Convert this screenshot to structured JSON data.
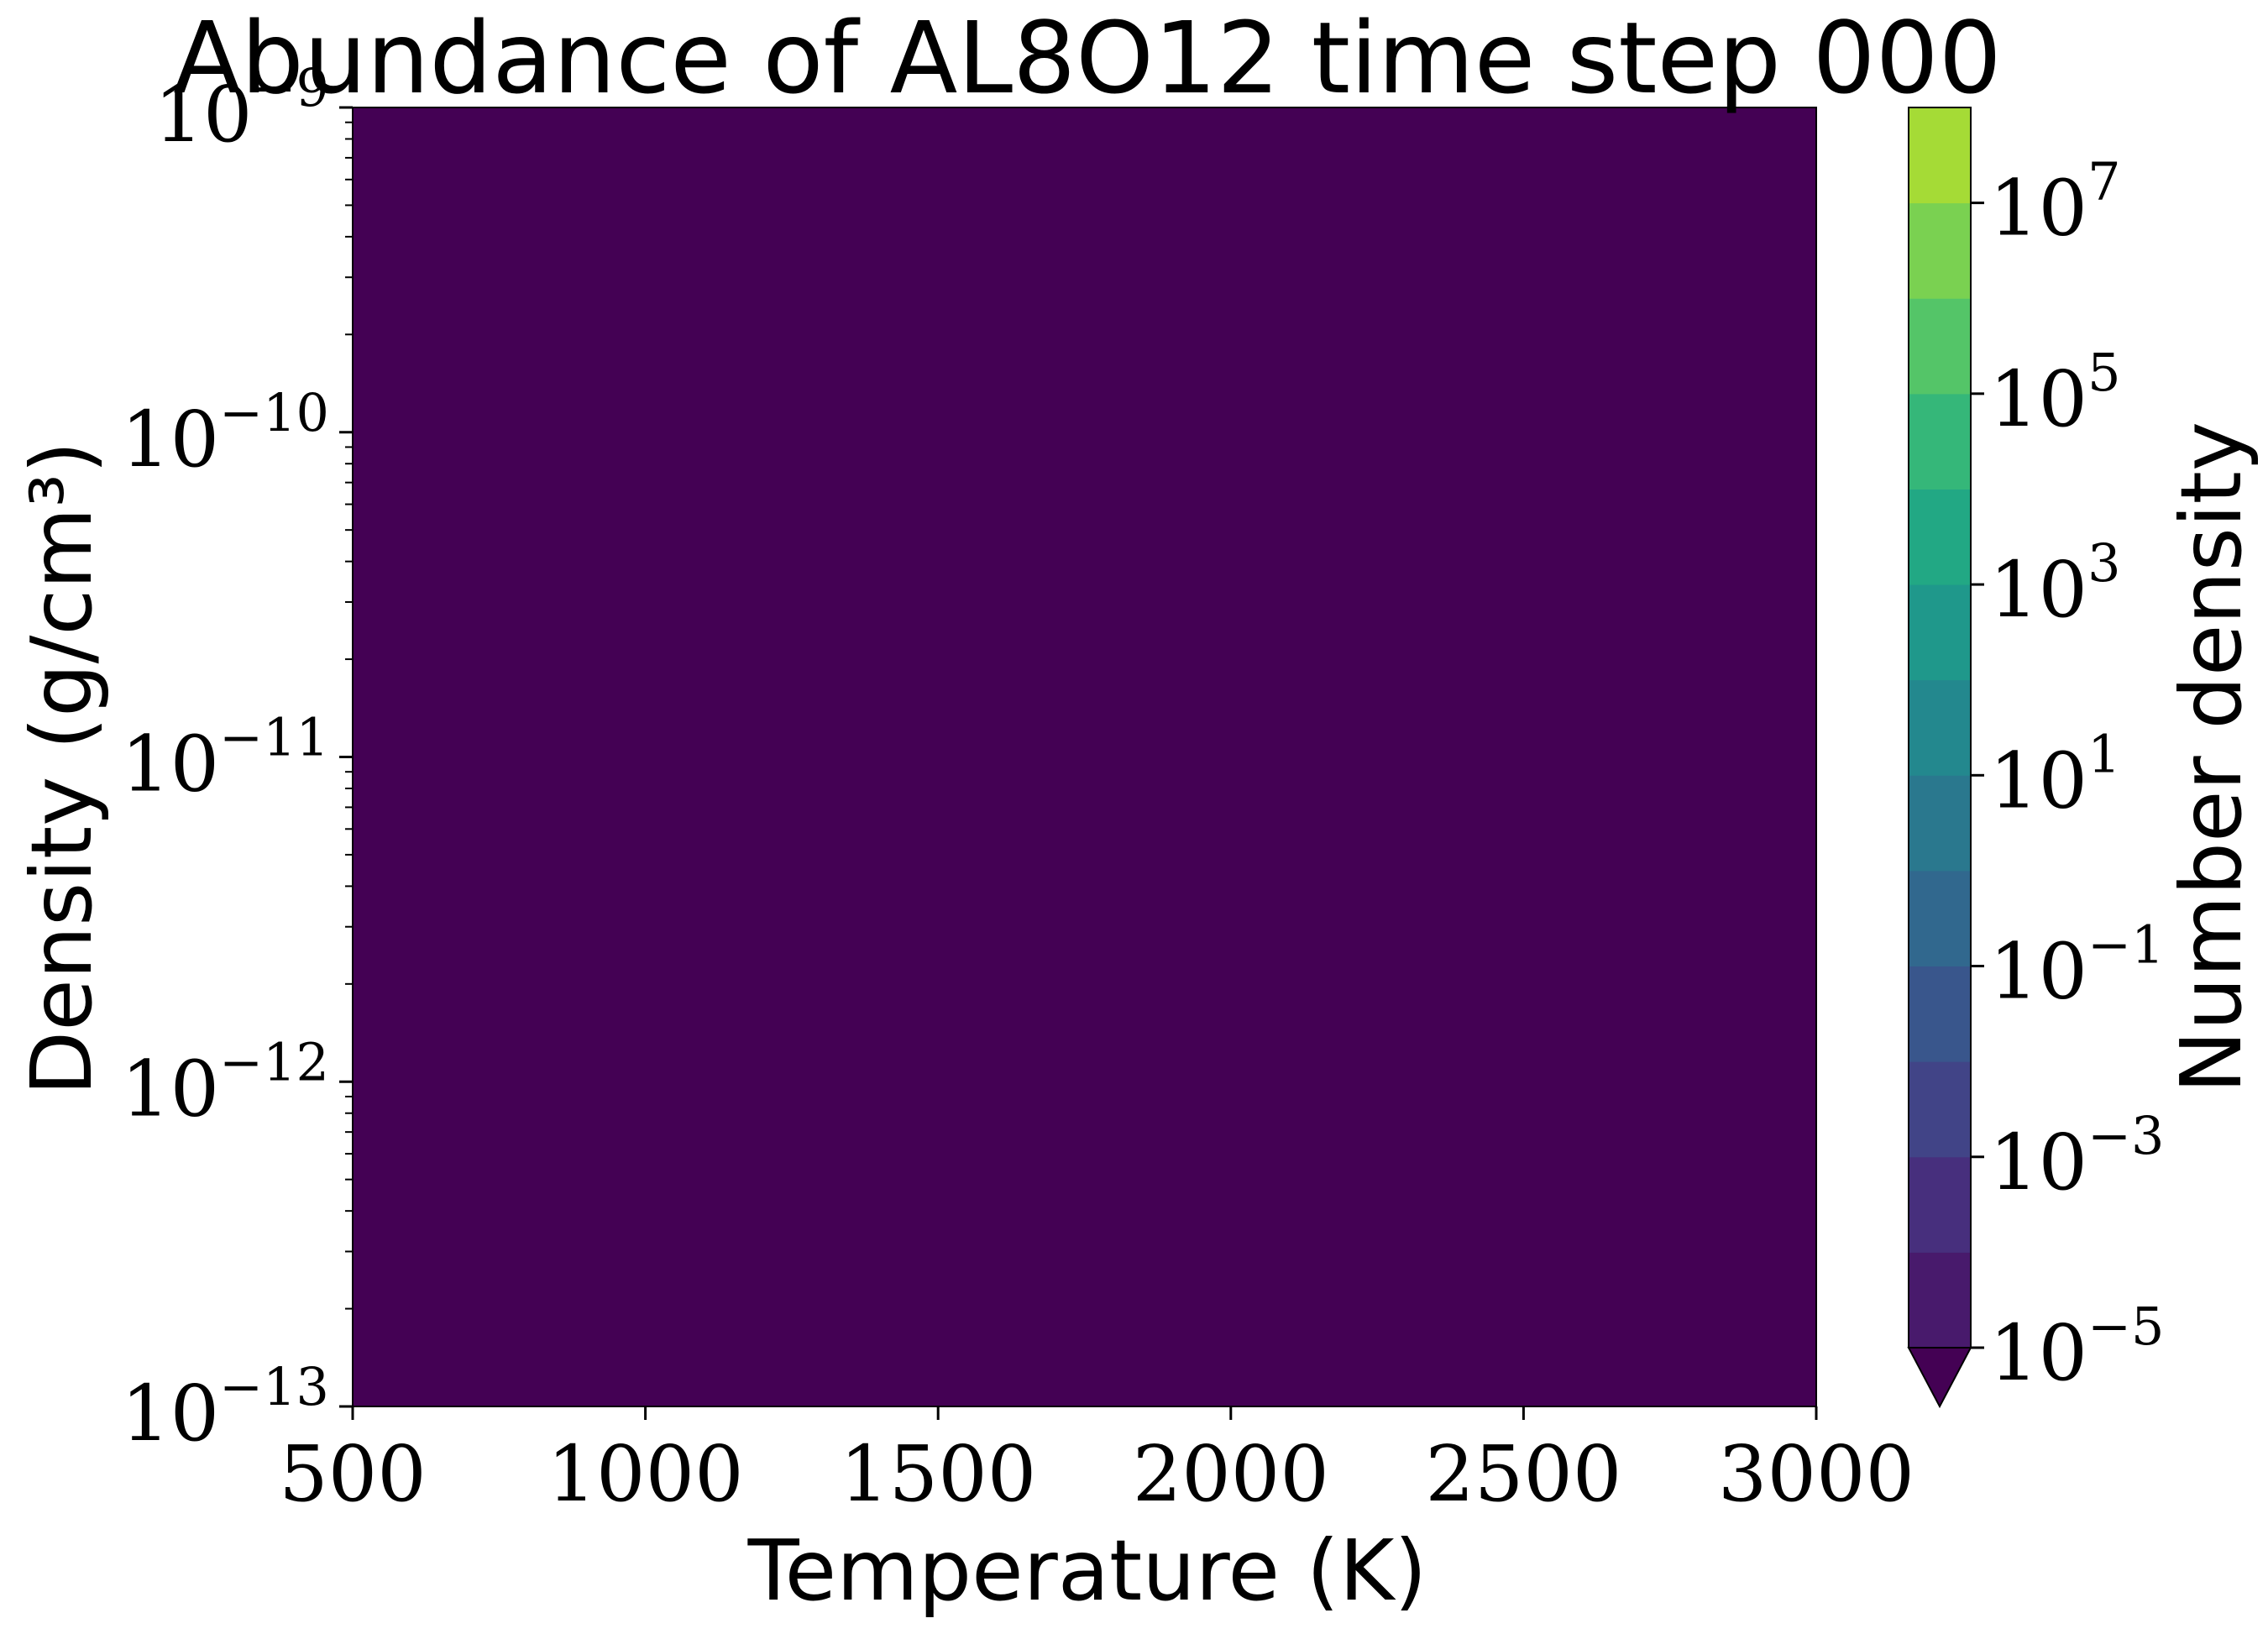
{
  "chart_data": {
    "type": "heatmap",
    "title": "Abundance of AL8O12 time step 000",
    "xlabel": "Temperature (K)",
    "ylabel": "Density (g/cm³)",
    "xlim": [
      500,
      3000
    ],
    "ylim": [
      1e-13,
      1e-09
    ],
    "yscale": "log",
    "x_ticks": [
      {
        "value": 500,
        "label": "500"
      },
      {
        "value": 1000,
        "label": "1000"
      },
      {
        "value": 1500,
        "label": "1500"
      },
      {
        "value": 2000,
        "label": "2000"
      },
      {
        "value": 2500,
        "label": "2500"
      },
      {
        "value": 3000,
        "label": "3000"
      }
    ],
    "y_ticks": [
      {
        "value": 1e-13,
        "base": "10",
        "exp": "−13"
      },
      {
        "value": 1e-12,
        "base": "10",
        "exp": "−12"
      },
      {
        "value": 1e-11,
        "base": "10",
        "exp": "−11"
      },
      {
        "value": 1e-10,
        "base": "10",
        "exp": "−10"
      },
      {
        "value": 1e-09,
        "base": "10",
        "exp": "−9"
      }
    ],
    "field": {
      "description": "uniform",
      "value": "below 1e-5",
      "color": "#440154"
    },
    "colorbar": {
      "label": "Number density",
      "scale": "log",
      "range": [
        1e-05,
        100000000.0
      ],
      "extend": "min",
      "under_color": "#440154",
      "levels": [
        1e-05,
        0.0001,
        0.001,
        0.01,
        0.1,
        1.0,
        10.0,
        100.0,
        1000.0,
        10000.0,
        100000.0,
        1000000.0,
        10000000.0,
        100000000.0
      ],
      "colors": [
        "#481a6c",
        "#472f7d",
        "#414487",
        "#39568c",
        "#31688e",
        "#2a788e",
        "#23888e",
        "#1f988b",
        "#22a884",
        "#35b779",
        "#54c568",
        "#7ad151",
        "#a5db36",
        "#d2e21b",
        "#fde725"
      ],
      "ticks": [
        {
          "value": 1e-05,
          "base": "10",
          "exp": "−5"
        },
        {
          "value": 0.001,
          "base": "10",
          "exp": "−3"
        },
        {
          "value": 0.1,
          "base": "10",
          "exp": "−1"
        },
        {
          "value": 10.0,
          "base": "10",
          "exp": "1"
        },
        {
          "value": 1000.0,
          "base": "10",
          "exp": "3"
        },
        {
          "value": 100000.0,
          "base": "10",
          "exp": "5"
        },
        {
          "value": 10000000.0,
          "base": "10",
          "exp": "7"
        }
      ]
    }
  }
}
